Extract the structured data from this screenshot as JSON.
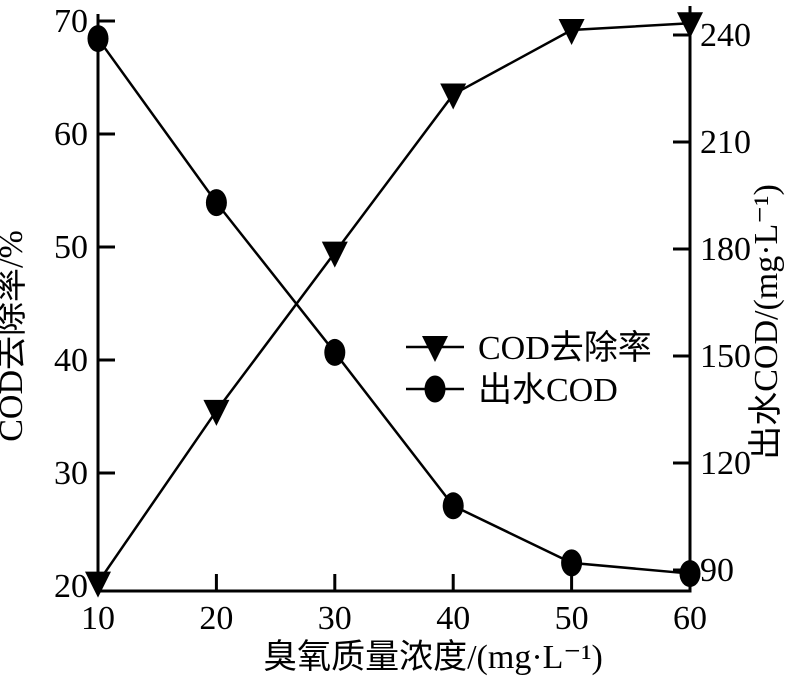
{
  "chart_data": {
    "type": "line",
    "title": "",
    "xlabel": "臭氧质量浓度/(mg·L⁻¹)",
    "ylabel_left": "COD去除率/%",
    "ylabel_right": "出水COD/(mg·L⁻¹)",
    "x": [
      10,
      20,
      30,
      40,
      50,
      60
    ],
    "xticks": [
      10,
      20,
      30,
      40,
      50,
      60
    ],
    "yticks_left": [
      20,
      30,
      40,
      50,
      60,
      70
    ],
    "yticks_right": [
      90,
      120,
      150,
      180,
      210,
      240
    ],
    "xlim": [
      10,
      60
    ],
    "ylim_left": [
      20,
      70
    ],
    "ylim_right": [
      90,
      240
    ],
    "grid": false,
    "series": [
      {
        "name": "COD去除率",
        "axis": "left",
        "marker": "triangle-down",
        "values": [
          20.3,
          35.5,
          49.5,
          63.5,
          69.2,
          69.8
        ]
      },
      {
        "name": "出水COD",
        "axis": "right",
        "marker": "ellipse",
        "values": [
          239,
          193,
          151,
          108,
          92,
          89
        ]
      }
    ],
    "legend": {
      "position": "center-right",
      "entries": [
        "COD去除率",
        "出水COD"
      ]
    },
    "colors": {
      "line": "#000000",
      "background": "#ffffff"
    }
  }
}
